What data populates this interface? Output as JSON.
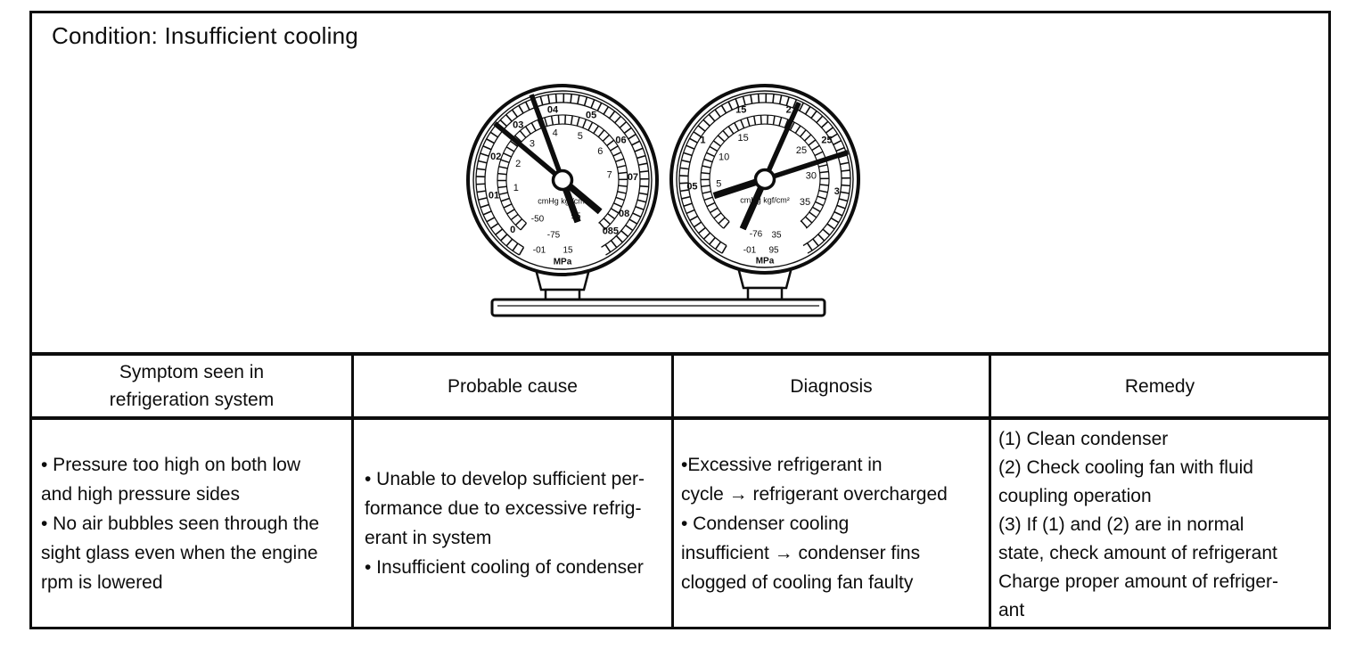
{
  "colors": {
    "ink": "#0d0d0d",
    "paper": "#ffffff"
  },
  "condition": {
    "title": "Condition: Insufficient cooling"
  },
  "gauges": {
    "low": {
      "name": "low-pressure-gauge",
      "unit": "MPa",
      "center_text": "cmHg kgf/cm²",
      "outer_labels": [
        [
          "0",
          -135
        ],
        [
          "01",
          -103
        ],
        [
          "02",
          -71
        ],
        [
          "03",
          -39
        ],
        [
          "04",
          -8
        ],
        [
          "05",
          24
        ],
        [
          "06",
          56
        ],
        [
          "07",
          88
        ],
        [
          "08",
          119
        ],
        [
          "085",
          137
        ]
      ],
      "inner_labels": [
        [
          "1",
          -100
        ],
        [
          "2",
          -70
        ],
        [
          "3",
          -40
        ],
        [
          "4",
          -9
        ],
        [
          "5",
          22
        ],
        [
          "6",
          53
        ],
        [
          "7",
          84
        ]
      ],
      "extra_labels": [
        [
          "-50",
          -28,
          44
        ],
        [
          "95",
          15,
          41
        ],
        [
          "-75",
          -10,
          62
        ],
        [
          "-01",
          -26,
          79
        ],
        [
          "15",
          6,
          79
        ]
      ],
      "needles": [
        [
          -50,
          99,
          55
        ],
        [
          -20,
          102,
          50
        ]
      ]
    },
    "high": {
      "name": "high-pressure-gauge",
      "unit": "MPa",
      "center_text": "cmHg kgf/cm²",
      "outer_labels": [
        [
          "05",
          -96
        ],
        [
          "1",
          -58
        ],
        [
          "15",
          -19
        ],
        [
          "2",
          19
        ],
        [
          "25",
          58
        ],
        [
          "3",
          100
        ]
      ],
      "inner_labels": [
        [
          "5",
          -96
        ],
        [
          "10",
          -62
        ],
        [
          "15",
          -28
        ],
        [
          "25",
          52
        ],
        [
          "30",
          86
        ],
        [
          "35",
          120
        ]
      ],
      "extra_labels": [
        [
          "-76",
          -10,
          62
        ],
        [
          "35",
          13,
          63
        ],
        [
          "-01",
          -17,
          80
        ],
        [
          "95",
          10,
          80
        ]
      ],
      "needles": [
        [
          24,
          94,
          61
        ],
        [
          72,
          98,
          60
        ]
      ]
    }
  },
  "table": {
    "headers": [
      "Symptom seen in\nrefrigeration system",
      "Probable cause",
      "Diagnosis",
      "Remedy"
    ],
    "row": {
      "symptom": "• Pressure too high on both low\nand high pressure sides\n• No air bubbles seen through the\nsight glass even when the engine\nrpm is lowered",
      "cause": "• Unable to develop sufficient per-\nformance due to excessive refrig-\nerant in system\n• Insufficient cooling of condenser",
      "diagnosis": "•Excessive refrigerant in\ncycle → refrigerant overcharged\n• Condenser cooling\ninsufficient → condenser fins\nclogged of cooling fan faulty",
      "remedy": "(1) Clean condenser\n(2) Check cooling fan with fluid\ncoupling operation\n(3) If (1) and (2) are in normal\nstate, check amount of refrigerant\nCharge proper amount of refriger-\nant"
    }
  }
}
